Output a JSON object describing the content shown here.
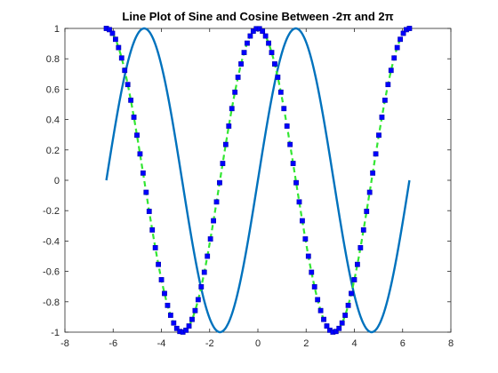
{
  "chart_data": {
    "type": "line",
    "title": "Line Plot of Sine and Cosine Between -2π and 2π",
    "xlabel": "",
    "ylabel": "",
    "xlim": [
      -8,
      8
    ],
    "ylim": [
      -1,
      1
    ],
    "xticks": [
      "-8",
      "-6",
      "-4",
      "-2",
      "0",
      "2",
      "4",
      "6",
      "8"
    ],
    "yticks": [
      "-1",
      "-0.8",
      "-0.6",
      "-0.4",
      "-0.2",
      "0",
      "0.2",
      "0.4",
      "0.6",
      "0.8",
      "1"
    ],
    "grid": false,
    "series": [
      {
        "function": "sin(x)",
        "x_range": [
          -6.2832,
          6.2832
        ],
        "style": "solid",
        "color": "#0072BD",
        "markers": "none",
        "x": [
          -6.2832,
          -5.236,
          -4.7124,
          -4.1888,
          -3.1416,
          -2.0944,
          -1.5708,
          -1.0472,
          0,
          1.0472,
          1.5708,
          2.0944,
          3.1416,
          4.1888,
          4.7124,
          5.236,
          6.2832
        ],
        "values": [
          0,
          0.866,
          1,
          0.866,
          0,
          -0.866,
          -1,
          -0.866,
          0,
          0.866,
          1,
          0.866,
          0,
          -0.866,
          -1,
          -0.866,
          0
        ]
      },
      {
        "function": "cos(x)",
        "x_range": [
          -6.2832,
          6.2832
        ],
        "style": "dashed",
        "color": "#33E633",
        "markers": "square",
        "marker_color": "#0000FF",
        "marker_count": 100,
        "x": [
          -6.2832,
          -5.236,
          -4.7124,
          -4.1888,
          -3.1416,
          -2.0944,
          -1.5708,
          -1.0472,
          0,
          1.0472,
          1.5708,
          2.0944,
          3.1416,
          4.1888,
          4.7124,
          5.236,
          6.2832
        ],
        "values": [
          1,
          0.5,
          0,
          -0.5,
          -1,
          -0.5,
          0,
          0.5,
          1,
          0.5,
          0,
          -0.5,
          -1,
          -0.5,
          0,
          0.5,
          1
        ]
      }
    ]
  }
}
